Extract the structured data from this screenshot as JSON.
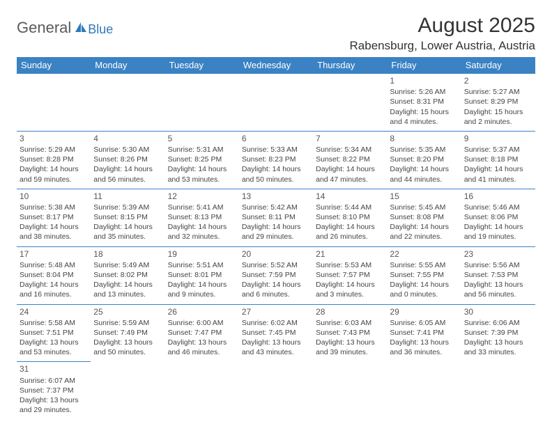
{
  "logo": {
    "text1": "General",
    "text2": "Blue"
  },
  "title": "August 2025",
  "location": "Rabensburg, Lower Austria, Austria",
  "colors": {
    "header_bg": "#3a82c4",
    "header_text": "#ffffff",
    "border": "#3a82c4",
    "body_text": "#444"
  },
  "days_of_week": [
    "Sunday",
    "Monday",
    "Tuesday",
    "Wednesday",
    "Thursday",
    "Friday",
    "Saturday"
  ],
  "weeks": [
    [
      null,
      null,
      null,
      null,
      null,
      {
        "n": "1",
        "sr": "5:26 AM",
        "ss": "8:31 PM",
        "dl": "15 hours and 4 minutes."
      },
      {
        "n": "2",
        "sr": "5:27 AM",
        "ss": "8:29 PM",
        "dl": "15 hours and 2 minutes."
      }
    ],
    [
      {
        "n": "3",
        "sr": "5:29 AM",
        "ss": "8:28 PM",
        "dl": "14 hours and 59 minutes."
      },
      {
        "n": "4",
        "sr": "5:30 AM",
        "ss": "8:26 PM",
        "dl": "14 hours and 56 minutes."
      },
      {
        "n": "5",
        "sr": "5:31 AM",
        "ss": "8:25 PM",
        "dl": "14 hours and 53 minutes."
      },
      {
        "n": "6",
        "sr": "5:33 AM",
        "ss": "8:23 PM",
        "dl": "14 hours and 50 minutes."
      },
      {
        "n": "7",
        "sr": "5:34 AM",
        "ss": "8:22 PM",
        "dl": "14 hours and 47 minutes."
      },
      {
        "n": "8",
        "sr": "5:35 AM",
        "ss": "8:20 PM",
        "dl": "14 hours and 44 minutes."
      },
      {
        "n": "9",
        "sr": "5:37 AM",
        "ss": "8:18 PM",
        "dl": "14 hours and 41 minutes."
      }
    ],
    [
      {
        "n": "10",
        "sr": "5:38 AM",
        "ss": "8:17 PM",
        "dl": "14 hours and 38 minutes."
      },
      {
        "n": "11",
        "sr": "5:39 AM",
        "ss": "8:15 PM",
        "dl": "14 hours and 35 minutes."
      },
      {
        "n": "12",
        "sr": "5:41 AM",
        "ss": "8:13 PM",
        "dl": "14 hours and 32 minutes."
      },
      {
        "n": "13",
        "sr": "5:42 AM",
        "ss": "8:11 PM",
        "dl": "14 hours and 29 minutes."
      },
      {
        "n": "14",
        "sr": "5:44 AM",
        "ss": "8:10 PM",
        "dl": "14 hours and 26 minutes."
      },
      {
        "n": "15",
        "sr": "5:45 AM",
        "ss": "8:08 PM",
        "dl": "14 hours and 22 minutes."
      },
      {
        "n": "16",
        "sr": "5:46 AM",
        "ss": "8:06 PM",
        "dl": "14 hours and 19 minutes."
      }
    ],
    [
      {
        "n": "17",
        "sr": "5:48 AM",
        "ss": "8:04 PM",
        "dl": "14 hours and 16 minutes."
      },
      {
        "n": "18",
        "sr": "5:49 AM",
        "ss": "8:02 PM",
        "dl": "14 hours and 13 minutes."
      },
      {
        "n": "19",
        "sr": "5:51 AM",
        "ss": "8:01 PM",
        "dl": "14 hours and 9 minutes."
      },
      {
        "n": "20",
        "sr": "5:52 AM",
        "ss": "7:59 PM",
        "dl": "14 hours and 6 minutes."
      },
      {
        "n": "21",
        "sr": "5:53 AM",
        "ss": "7:57 PM",
        "dl": "14 hours and 3 minutes."
      },
      {
        "n": "22",
        "sr": "5:55 AM",
        "ss": "7:55 PM",
        "dl": "14 hours and 0 minutes."
      },
      {
        "n": "23",
        "sr": "5:56 AM",
        "ss": "7:53 PM",
        "dl": "13 hours and 56 minutes."
      }
    ],
    [
      {
        "n": "24",
        "sr": "5:58 AM",
        "ss": "7:51 PM",
        "dl": "13 hours and 53 minutes."
      },
      {
        "n": "25",
        "sr": "5:59 AM",
        "ss": "7:49 PM",
        "dl": "13 hours and 50 minutes."
      },
      {
        "n": "26",
        "sr": "6:00 AM",
        "ss": "7:47 PM",
        "dl": "13 hours and 46 minutes."
      },
      {
        "n": "27",
        "sr": "6:02 AM",
        "ss": "7:45 PM",
        "dl": "13 hours and 43 minutes."
      },
      {
        "n": "28",
        "sr": "6:03 AM",
        "ss": "7:43 PM",
        "dl": "13 hours and 39 minutes."
      },
      {
        "n": "29",
        "sr": "6:05 AM",
        "ss": "7:41 PM",
        "dl": "13 hours and 36 minutes."
      },
      {
        "n": "30",
        "sr": "6:06 AM",
        "ss": "7:39 PM",
        "dl": "13 hours and 33 minutes."
      }
    ],
    [
      {
        "n": "31",
        "sr": "6:07 AM",
        "ss": "7:37 PM",
        "dl": "13 hours and 29 minutes."
      },
      null,
      null,
      null,
      null,
      null,
      null
    ]
  ],
  "labels": {
    "sunrise": "Sunrise:",
    "sunset": "Sunset:",
    "daylight": "Daylight:"
  }
}
